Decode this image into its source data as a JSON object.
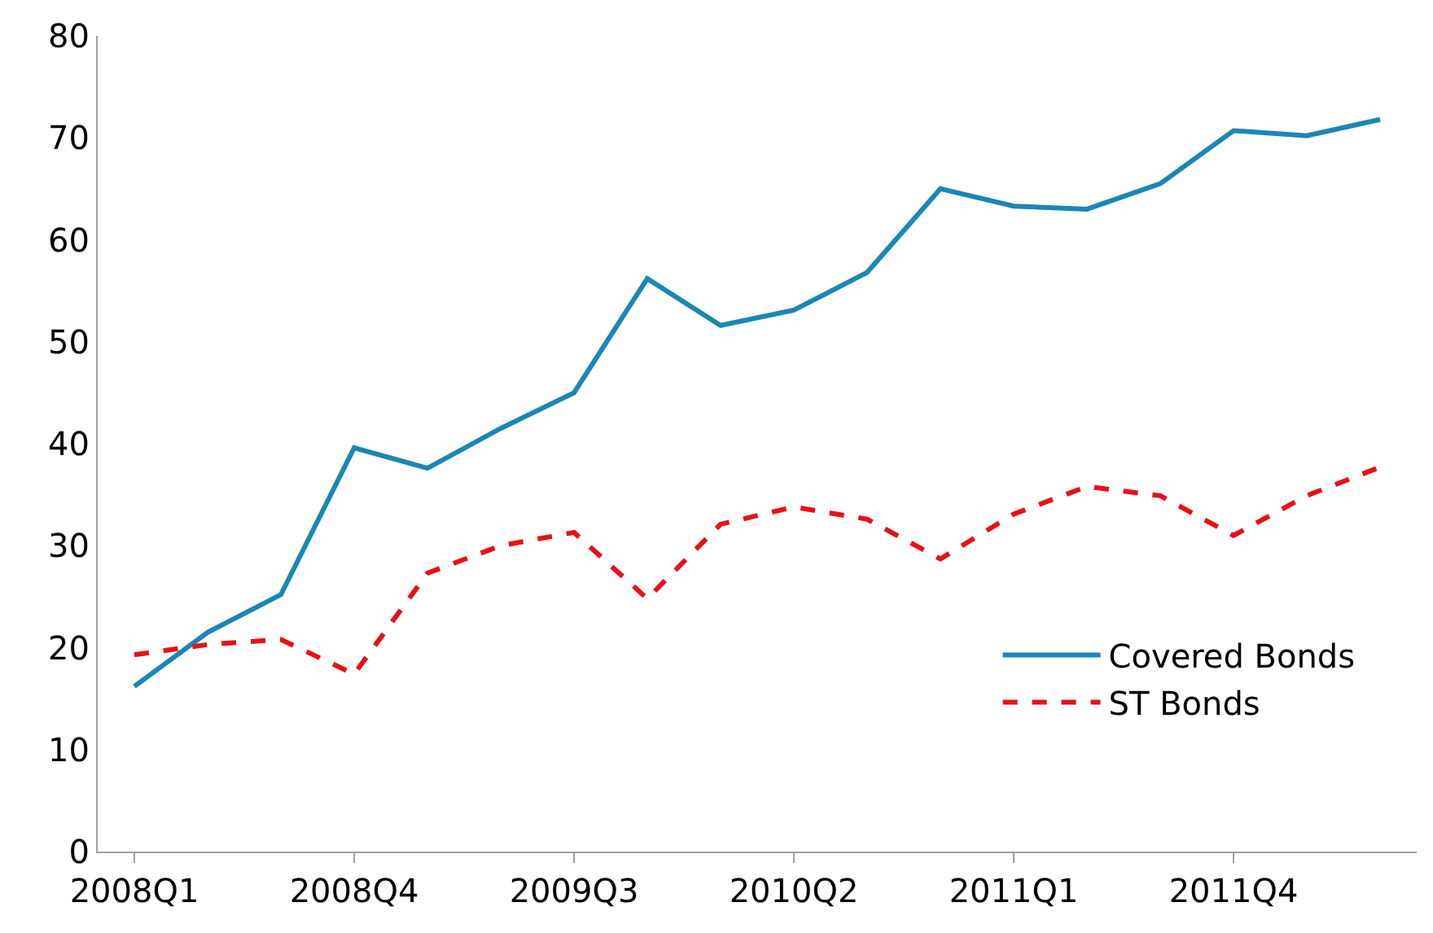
{
  "chart_data": {
    "type": "line",
    "categories": [
      "2008Q1",
      null,
      null,
      "2008Q4",
      null,
      null,
      "2009Q3",
      null,
      null,
      "2010Q2",
      null,
      null,
      "2011Q1",
      null,
      null,
      "2011Q4",
      null,
      null
    ],
    "series": [
      {
        "name": "Covered Bonds",
        "color": "#1a87b5",
        "line_style": "solid",
        "values": [
          16.2,
          21.5,
          25.2,
          39.6,
          37.6,
          41.5,
          45,
          56.2,
          51.6,
          53.1,
          56.8,
          65,
          63.3,
          63,
          65.5,
          70.7,
          70.2,
          71.8
        ]
      },
      {
        "name": "ST Bonds",
        "color": "#e8101a",
        "line_style": "dashed",
        "values": [
          19.3,
          20.3,
          20.8,
          17.4,
          27.3,
          30,
          31.3,
          24.8,
          32.1,
          33.8,
          32.6,
          28.7,
          33.1,
          35.8,
          34.9,
          31,
          34.9,
          37.7
        ]
      }
    ],
    "ylim": [
      0,
      80
    ],
    "yticks": [
      0,
      10,
      20,
      30,
      40,
      50,
      60,
      70,
      80
    ],
    "legend": "bottom right",
    "marker": "none"
  }
}
